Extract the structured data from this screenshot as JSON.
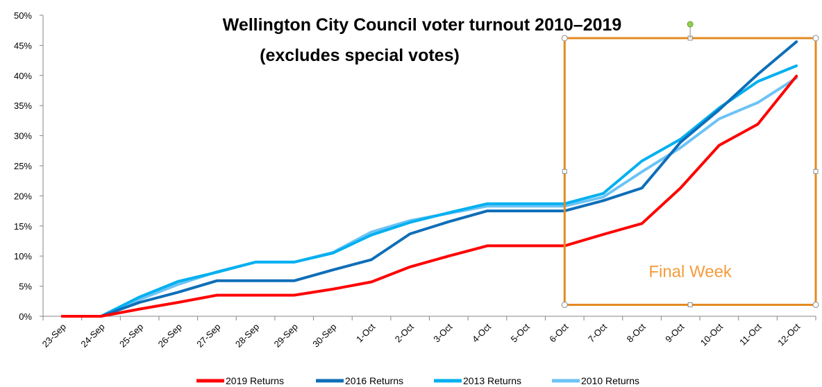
{
  "chart_data": {
    "type": "line",
    "title_line1": "Wellington City Council voter turnout 2010–2019",
    "title_line2": "(excludes special votes)",
    "categories": [
      "23-Sep",
      "24-Sep",
      "25-Sep",
      "26-Sep",
      "27-Sep",
      "28-Sep",
      "29-Sep",
      "30-Sep",
      "1-Oct",
      "2-Oct",
      "3-Oct",
      "4-Oct",
      "5-Oct",
      "6-Oct",
      "7-Oct",
      "8-Oct",
      "9-Oct",
      "10-Oct",
      "11-Oct",
      "12-Oct"
    ],
    "y_ticks": [
      "0%",
      "5%",
      "10%",
      "15%",
      "20%",
      "25%",
      "30%",
      "35%",
      "40%",
      "45%",
      "50%"
    ],
    "ylim": [
      0,
      50
    ],
    "series": [
      {
        "name": "2019 Returns",
        "color": "#ff0000",
        "values": [
          0,
          0,
          1.2,
          2.3,
          3.5,
          3.5,
          3.5,
          4.5,
          5.7,
          8.2,
          10.0,
          11.7,
          11.7,
          11.7,
          13.6,
          15.4,
          21.3,
          28.4,
          31.9,
          39.9
        ]
      },
      {
        "name": "2016 Returns",
        "color": "#0e6eb8",
        "values": [
          0,
          0,
          2.3,
          4.0,
          5.9,
          5.9,
          5.9,
          7.7,
          9.4,
          13.7,
          15.7,
          17.5,
          17.5,
          17.5,
          19.2,
          21.3,
          28.9,
          34.3,
          40.2,
          45.6
        ]
      },
      {
        "name": "2013 Returns",
        "color": "#00b0f0",
        "values": [
          0,
          0,
          3.2,
          5.8,
          7.3,
          9.0,
          9.0,
          10.5,
          13.5,
          15.6,
          17.2,
          18.7,
          18.7,
          18.7,
          20.4,
          25.8,
          29.4,
          34.6,
          39.0,
          41.6
        ]
      },
      {
        "name": "2010 Returns",
        "color": "#6cc3f4",
        "values": [
          0,
          0,
          2.8,
          5.3,
          7.4,
          9.0,
          9.0,
          10.6,
          14.0,
          15.9,
          17.1,
          18.3,
          18.3,
          18.3,
          19.8,
          24.0,
          28.0,
          32.8,
          35.5,
          39.6
        ]
      }
    ],
    "grid": false,
    "legend_position": "bottom",
    "annotation": {
      "label": "Final Week",
      "from": "6-Oct",
      "to": "12-Oct",
      "color": "#e48a21"
    }
  }
}
